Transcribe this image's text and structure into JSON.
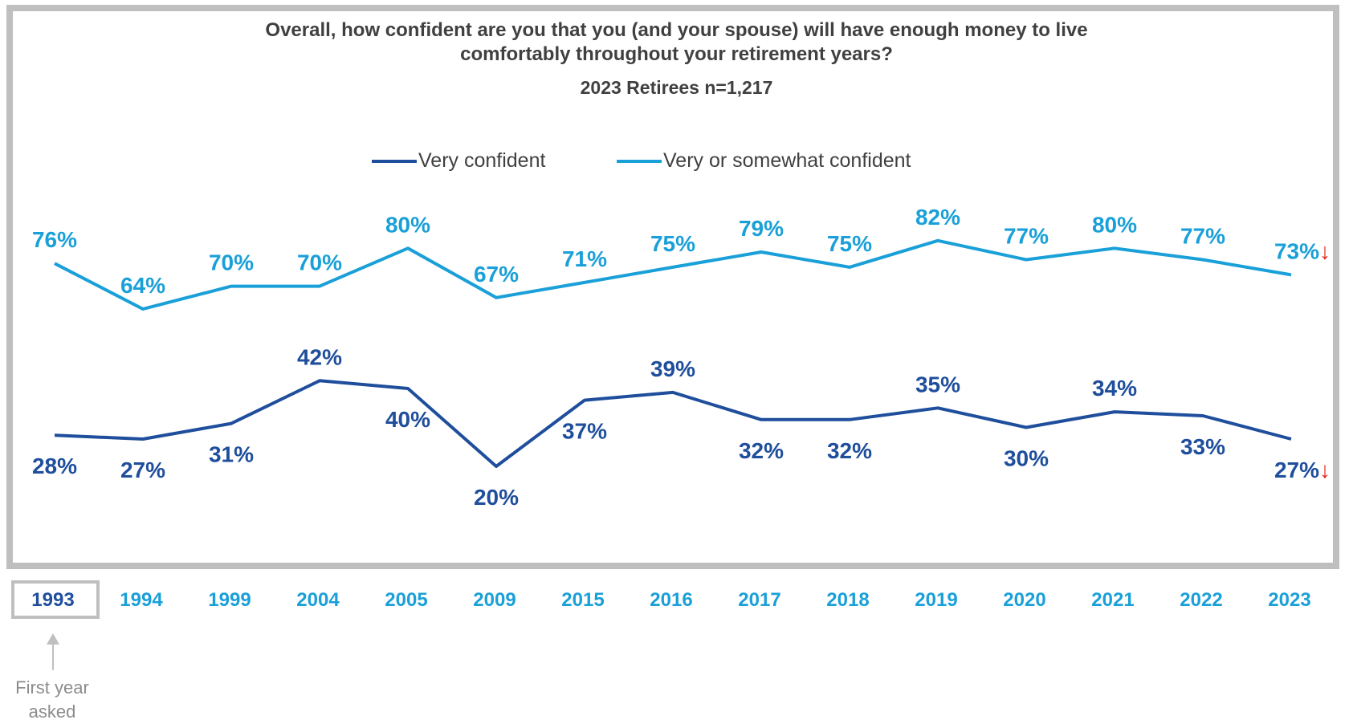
{
  "chart_data": {
    "type": "line",
    "title": "Overall, how confident are you that you (and your spouse) will have enough money to live",
    "title_line2": "comfortably throughout your retirement years?",
    "subtitle": "2023 Retirees n=1,217",
    "legend_position": "top",
    "categories": [
      "1993",
      "1994",
      "1999",
      "2004",
      "2005",
      "2009",
      "2015",
      "2016",
      "2017",
      "2018",
      "2019",
      "2020",
      "2021",
      "2022",
      "2023"
    ],
    "series": [
      {
        "name": "Very confident",
        "color": "#1f4e9c",
        "values": [
          28,
          27,
          31,
          42,
          40,
          20,
          37,
          39,
          32,
          32,
          35,
          30,
          34,
          33,
          27
        ],
        "labels": [
          "28%",
          "27%",
          "31%",
          "42%",
          "40%",
          "20%",
          "37%",
          "39%",
          "32%",
          "32%",
          "35%",
          "30%",
          "34%",
          "33%",
          "27%"
        ]
      },
      {
        "name": "Very or somewhat confident",
        "color": "#1aa0d8",
        "values": [
          76,
          64,
          70,
          70,
          80,
          67,
          71,
          75,
          79,
          75,
          82,
          77,
          80,
          77,
          73
        ],
        "labels": [
          "76%",
          "64%",
          "70%",
          "70%",
          "80%",
          "67%",
          "71%",
          "75%",
          "79%",
          "75%",
          "82%",
          "77%",
          "80%",
          "77%",
          "73%"
        ]
      }
    ],
    "annotations": {
      "decline_marker": "↓",
      "decline_color": "#e32119",
      "first_year_note": "First year asked",
      "first_year_note_line1": "First year",
      "first_year_note_line2": "asked"
    },
    "year_label_colors": {
      "first": "#1f4e9c",
      "rest": "#1aa0d8"
    },
    "grid": false
  }
}
